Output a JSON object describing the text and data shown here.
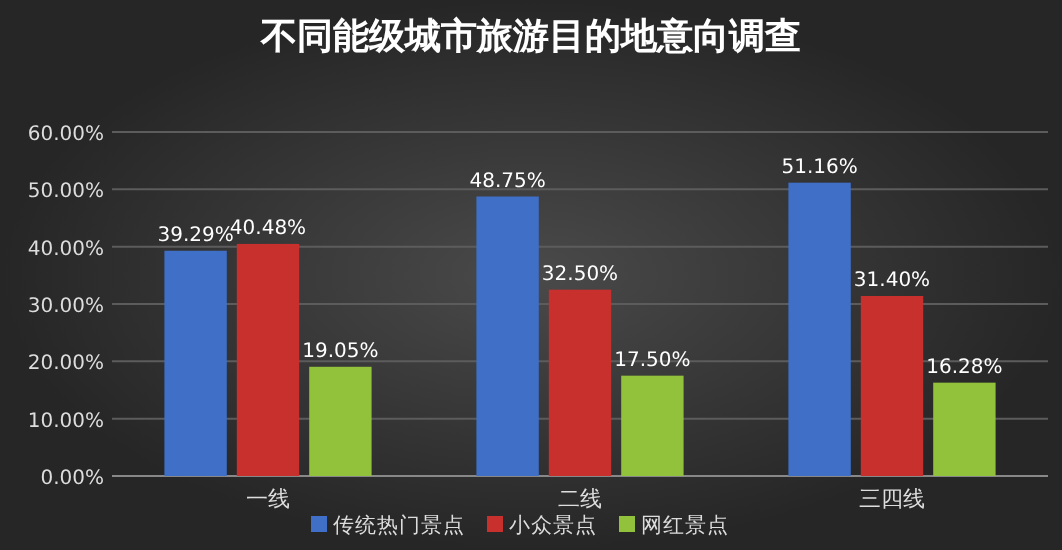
{
  "chart_data": {
    "type": "bar",
    "title": "不同能级城市旅游目的地意向调查",
    "categories": [
      "一线",
      "二线",
      "三四线"
    ],
    "series": [
      {
        "name": "传统热门景点",
        "color": "#3f6fc6",
        "values": [
          39.29,
          48.75,
          51.16
        ],
        "value_labels": [
          "39.29%",
          "48.75%",
          "51.16%"
        ]
      },
      {
        "name": "小众景点",
        "color": "#c8302e",
        "values": [
          40.48,
          32.5,
          31.4
        ],
        "value_labels": [
          "40.48%",
          "32.50%",
          "31.40%"
        ]
      },
      {
        "name": "网红景点",
        "color": "#92c13b",
        "values": [
          19.05,
          17.5,
          16.28
        ],
        "value_labels": [
          "19.05%",
          "17.50%",
          "16.28%"
        ]
      }
    ],
    "ylim": [
      0,
      60
    ],
    "yticks": [
      {
        "value": 0,
        "label": "0.00%"
      },
      {
        "value": 10,
        "label": "10.00%"
      },
      {
        "value": 20,
        "label": "20.00%"
      },
      {
        "value": 30,
        "label": "30.00%"
      },
      {
        "value": 40,
        "label": "40.00%"
      },
      {
        "value": 50,
        "label": "50.00%"
      },
      {
        "value": 60,
        "label": "60.00%"
      }
    ],
    "grid": "y",
    "legend": "bottom"
  }
}
